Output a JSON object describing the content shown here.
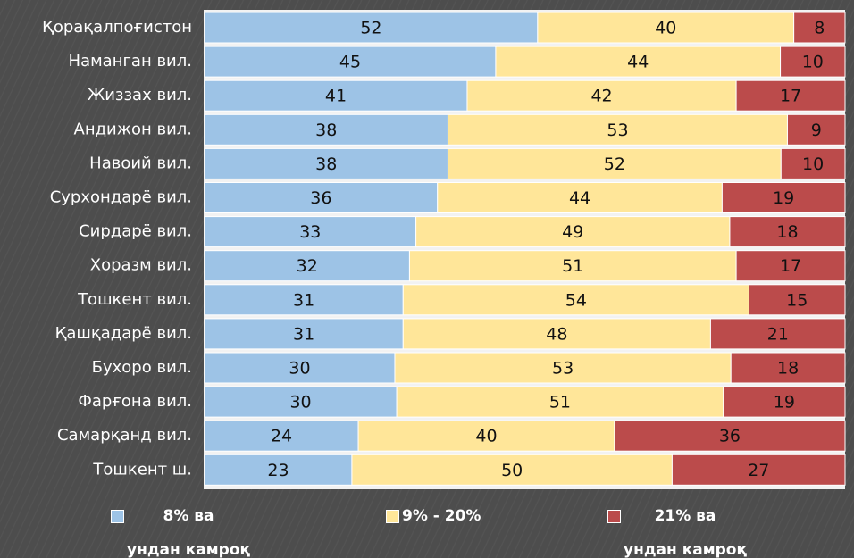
{
  "chart_data": {
    "type": "stacked_bar_100",
    "orientation": "horizontal",
    "categories": [
      "Қорақалпоғистон",
      "Наманган вил.",
      "Жиззах вил.",
      "Андижон вил.",
      "Навоий вил.",
      "Сурхондарё вил.",
      "Сирдарё вил.",
      "Хоразм вил.",
      "Тошкент вил.",
      "Қашқадарё вил.",
      "Бухоро вил.",
      "Фарғона вил.",
      "Самарқанд вил.",
      "Тошкент ш."
    ],
    "series": [
      {
        "name": "8% ва\nундан камроқ",
        "color": "#9dc3e6",
        "values": [
          52,
          45,
          41,
          38,
          38,
          36,
          33,
          32,
          31,
          31,
          30,
          30,
          24,
          23
        ]
      },
      {
        "name": "9% - 20%",
        "color": "#ffe699",
        "values": [
          40,
          44,
          42,
          53,
          52,
          44,
          49,
          51,
          54,
          48,
          53,
          51,
          40,
          50
        ]
      },
      {
        "name": "21% ва\nундан камроқ",
        "color": "#bb4b4b",
        "values": [
          8,
          10,
          17,
          9,
          10,
          19,
          18,
          17,
          15,
          21,
          18,
          19,
          36,
          27
        ]
      }
    ],
    "legend": "bottom"
  }
}
